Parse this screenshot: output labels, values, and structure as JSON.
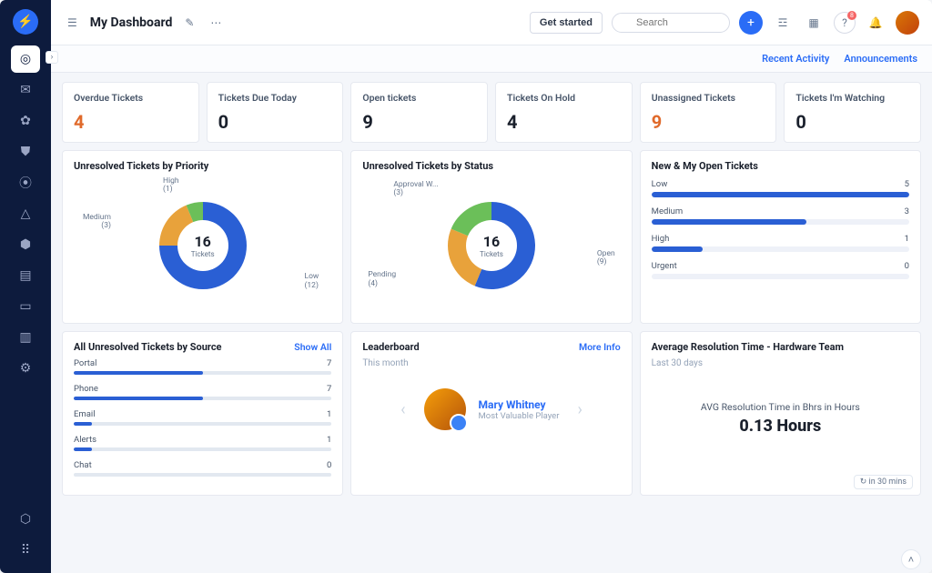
{
  "header": {
    "title": "My Dashboard",
    "get_started": "Get started",
    "search_placeholder": "Search",
    "help_badge": "8"
  },
  "sublinks": {
    "recent": "Recent Activity",
    "announcements": "Announcements"
  },
  "stats": [
    {
      "label": "Overdue Tickets",
      "value": "4",
      "color": "#e06a2b"
    },
    {
      "label": "Tickets Due Today",
      "value": "0",
      "color": "#1a202c"
    },
    {
      "label": "Open tickets",
      "value": "9",
      "color": "#1a202c"
    },
    {
      "label": "Tickets On Hold",
      "value": "4",
      "color": "#1a202c"
    },
    {
      "label": "Unassigned Tickets",
      "value": "9",
      "color": "#e06a2b"
    },
    {
      "label": "Tickets I'm Watching",
      "value": "0",
      "color": "#1a202c"
    }
  ],
  "priority": {
    "title": "Unresolved Tickets by Priority",
    "total": 16,
    "total_label": "Tickets",
    "slices": [
      {
        "label": "Low",
        "count": 12,
        "color": "#2a5fd4",
        "lp": "right:14px; bottom:26px;"
      },
      {
        "label": "Medium",
        "count": 3,
        "color": "#e8a23b",
        "lp": "left:10px; top:40px; text-align:right;"
      },
      {
        "label": "High",
        "count": 1,
        "color": "#6bbf59",
        "lp": "left:98px; top:0px;"
      }
    ]
  },
  "status": {
    "title": "Unresolved Tickets by Status",
    "total": 16,
    "total_label": "Tickets",
    "slices": [
      {
        "label": "Open",
        "count": 9,
        "color": "#2a5fd4",
        "lp": "right:6px; top:80px;"
      },
      {
        "label": "Pending",
        "count": 4,
        "color": "#e8a23b",
        "lp": "left:6px; bottom:28px;"
      },
      {
        "label": "Approval W...",
        "count": 3,
        "color": "#6bbf59",
        "lp": "left:34px; top:4px;"
      }
    ]
  },
  "open": {
    "title": "New & My Open Tickets",
    "max": 5,
    "items": [
      {
        "label": "Low",
        "value": 5
      },
      {
        "label": "Medium",
        "value": 3
      },
      {
        "label": "High",
        "value": 1
      },
      {
        "label": "Urgent",
        "value": 0
      }
    ],
    "bar_color": "#2a5fd4",
    "track_color": "#eef1f8"
  },
  "source": {
    "title": "All Unresolved Tickets by Source",
    "link": "Show All",
    "max": 14,
    "items": [
      {
        "label": "Portal",
        "value": 7
      },
      {
        "label": "Phone",
        "value": 7
      },
      {
        "label": "Email",
        "value": 1
      },
      {
        "label": "Alerts",
        "value": 1
      },
      {
        "label": "Chat",
        "value": 0
      }
    ],
    "bar_color": "#2a5fd4"
  },
  "leaderboard": {
    "title": "Leaderboard",
    "subtitle": "This month",
    "link": "More Info",
    "name": "Mary Whitney",
    "role": "Most Valuable Player"
  },
  "resolution": {
    "title": "Average Resolution Time - Hardware Team",
    "subtitle": "Last 30 days",
    "label": "AVG Resolution Time in Bhrs in Hours",
    "value": "0.13 Hours",
    "refresh": "in 30 mins"
  }
}
